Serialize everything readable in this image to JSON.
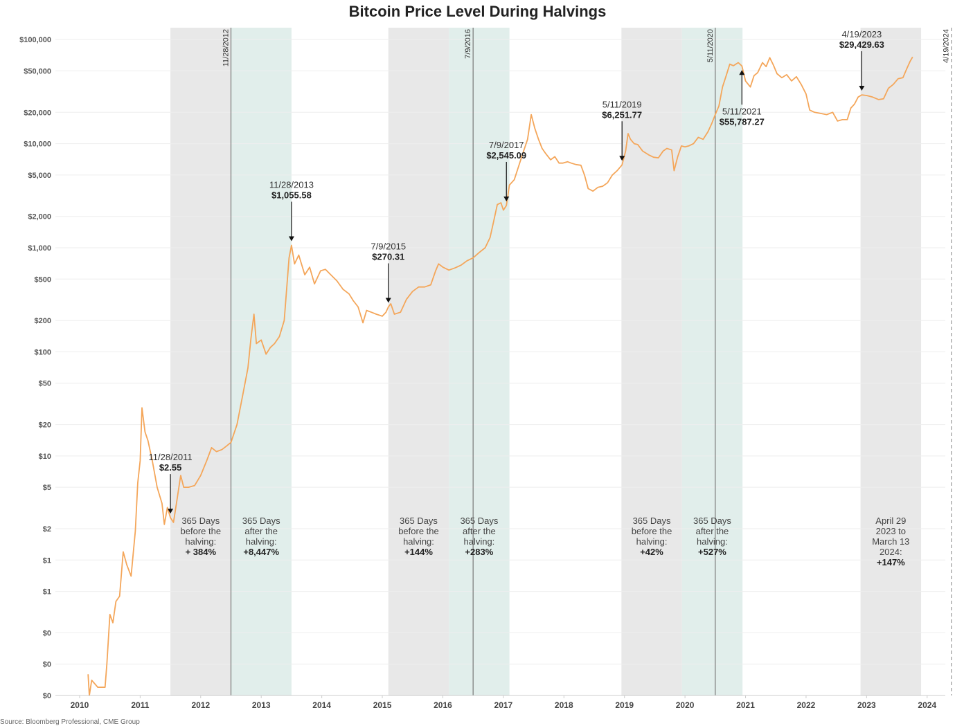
{
  "chart_data": {
    "type": "line",
    "title": "Bitcoin Price Level During Halvings",
    "source": "Source: Bloomberg Professional, CME Group",
    "scale": "log",
    "ylim": [
      0.05,
      130000
    ],
    "xlim": [
      2009.6,
      2024.3
    ],
    "y_ticks": [
      {
        "value": 100000,
        "label": "$100,000"
      },
      {
        "value": 50000,
        "label": "$50,000"
      },
      {
        "value": 20000,
        "label": "$20,000"
      },
      {
        "value": 10000,
        "label": "$10,000"
      },
      {
        "value": 5000,
        "label": "$5,000"
      },
      {
        "value": 2000,
        "label": "$2,000"
      },
      {
        "value": 1000,
        "label": "$1,000"
      },
      {
        "value": 500,
        "label": "$500"
      },
      {
        "value": 200,
        "label": "$200"
      },
      {
        "value": 100,
        "label": "$100"
      },
      {
        "value": 50,
        "label": "$50"
      },
      {
        "value": 20,
        "label": "$20"
      },
      {
        "value": 10,
        "label": "$10"
      },
      {
        "value": 5,
        "label": "$5"
      },
      {
        "value": 2,
        "label": "$2"
      },
      {
        "value": 1,
        "label": "$1"
      },
      {
        "value": 0.5,
        "label": "$1"
      },
      {
        "value": 0.2,
        "label": "$0"
      },
      {
        "value": 0.1,
        "label": "$0"
      },
      {
        "value": 0.05,
        "label": "$0"
      }
    ],
    "x_ticks": [
      "2010",
      "2011",
      "2012",
      "2013",
      "2014",
      "2015",
      "2016",
      "2017",
      "2018",
      "2019",
      "2020",
      "2021",
      "2022",
      "2023",
      "2024"
    ],
    "series": [
      {
        "name": "Bitcoin",
        "color": "#f4a65a",
        "points": [
          [
            2010.14,
            0.08
          ],
          [
            2010.16,
            0.05
          ],
          [
            2010.2,
            0.07
          ],
          [
            2010.3,
            0.06
          ],
          [
            2010.42,
            0.06
          ],
          [
            2010.45,
            0.1
          ],
          [
            2010.5,
            0.3
          ],
          [
            2010.55,
            0.25
          ],
          [
            2010.6,
            0.4
          ],
          [
            2010.66,
            0.45
          ],
          [
            2010.72,
            1.2
          ],
          [
            2010.78,
            0.9
          ],
          [
            2010.85,
            0.7
          ],
          [
            2010.92,
            1.9
          ],
          [
            2010.96,
            5.5
          ],
          [
            2011.0,
            9
          ],
          [
            2011.03,
            29
          ],
          [
            2011.08,
            17
          ],
          [
            2011.13,
            14
          ],
          [
            2011.2,
            9
          ],
          [
            2011.28,
            5
          ],
          [
            2011.36,
            3.5
          ],
          [
            2011.4,
            2.2
          ],
          [
            2011.45,
            3.2
          ],
          [
            2011.5,
            2.55
          ],
          [
            2011.55,
            2.3
          ],
          [
            2011.6,
            3.5
          ],
          [
            2011.67,
            6.5
          ],
          [
            2011.72,
            5
          ],
          [
            2011.8,
            5
          ],
          [
            2011.9,
            5.2
          ],
          [
            2012.0,
            6.5
          ],
          [
            2012.1,
            9
          ],
          [
            2012.18,
            12
          ],
          [
            2012.26,
            11
          ],
          [
            2012.35,
            11.5
          ],
          [
            2012.43,
            12.5
          ],
          [
            2012.5,
            13.5
          ],
          [
            2012.6,
            20
          ],
          [
            2012.7,
            40
          ],
          [
            2012.78,
            70
          ],
          [
            2012.83,
            135
          ],
          [
            2012.88,
            230
          ],
          [
            2012.92,
            120
          ],
          [
            2013.0,
            130
          ],
          [
            2013.08,
            95
          ],
          [
            2013.15,
            110
          ],
          [
            2013.22,
            120
          ],
          [
            2013.3,
            140
          ],
          [
            2013.38,
            200
          ],
          [
            2013.42,
            400
          ],
          [
            2013.46,
            800
          ],
          [
            2013.5,
            1055
          ],
          [
            2013.55,
            700
          ],
          [
            2013.62,
            850
          ],
          [
            2013.72,
            550
          ],
          [
            2013.8,
            650
          ],
          [
            2013.88,
            450
          ],
          [
            2013.98,
            600
          ],
          [
            2014.06,
            620
          ],
          [
            2014.15,
            550
          ],
          [
            2014.25,
            480
          ],
          [
            2014.35,
            400
          ],
          [
            2014.45,
            360
          ],
          [
            2014.52,
            310
          ],
          [
            2014.6,
            270
          ],
          [
            2014.68,
            190
          ],
          [
            2014.74,
            250
          ],
          [
            2014.82,
            240
          ],
          [
            2014.9,
            230
          ],
          [
            2015.0,
            220
          ],
          [
            2015.06,
            240
          ],
          [
            2015.1,
            270
          ],
          [
            2015.14,
            290
          ],
          [
            2015.2,
            230
          ],
          [
            2015.3,
            240
          ],
          [
            2015.4,
            320
          ],
          [
            2015.5,
            380
          ],
          [
            2015.6,
            420
          ],
          [
            2015.7,
            420
          ],
          [
            2015.8,
            440
          ],
          [
            2015.88,
            600
          ],
          [
            2015.93,
            700
          ],
          [
            2016.0,
            650
          ],
          [
            2016.1,
            610
          ],
          [
            2016.2,
            640
          ],
          [
            2016.3,
            680
          ],
          [
            2016.4,
            750
          ],
          [
            2016.5,
            800
          ],
          [
            2016.6,
            900
          ],
          [
            2016.7,
            1000
          ],
          [
            2016.78,
            1250
          ],
          [
            2016.84,
            1800
          ],
          [
            2016.9,
            2600
          ],
          [
            2016.96,
            2700
          ],
          [
            2017.0,
            2300
          ],
          [
            2017.05,
            2545
          ],
          [
            2017.1,
            4000
          ],
          [
            2017.18,
            4500
          ],
          [
            2017.25,
            6000
          ],
          [
            2017.32,
            8000
          ],
          [
            2017.4,
            11000
          ],
          [
            2017.46,
            19000
          ],
          [
            2017.52,
            14000
          ],
          [
            2017.58,
            11000
          ],
          [
            2017.64,
            9000
          ],
          [
            2017.7,
            8000
          ],
          [
            2017.78,
            7000
          ],
          [
            2017.85,
            7500
          ],
          [
            2017.92,
            6500
          ],
          [
            2017.98,
            6500
          ],
          [
            2018.06,
            6700
          ],
          [
            2018.12,
            6500
          ],
          [
            2018.2,
            6300
          ],
          [
            2018.28,
            6200
          ],
          [
            2018.34,
            5000
          ],
          [
            2018.4,
            3700
          ],
          [
            2018.48,
            3500
          ],
          [
            2018.56,
            3800
          ],
          [
            2018.64,
            3900
          ],
          [
            2018.72,
            4200
          ],
          [
            2018.8,
            5000
          ],
          [
            2018.88,
            5500
          ],
          [
            2018.96,
            6251
          ],
          [
            2019.02,
            8500
          ],
          [
            2019.06,
            12500
          ],
          [
            2019.1,
            11000
          ],
          [
            2019.16,
            10000
          ],
          [
            2019.22,
            9800
          ],
          [
            2019.3,
            8500
          ],
          [
            2019.4,
            7800
          ],
          [
            2019.48,
            7400
          ],
          [
            2019.56,
            7300
          ],
          [
            2019.64,
            8500
          ],
          [
            2019.7,
            9000
          ],
          [
            2019.78,
            8700
          ],
          [
            2019.82,
            5500
          ],
          [
            2019.88,
            7500
          ],
          [
            2019.94,
            9500
          ],
          [
            2020.0,
            9300
          ],
          [
            2020.06,
            9500
          ],
          [
            2020.14,
            10000
          ],
          [
            2020.22,
            11500
          ],
          [
            2020.3,
            11000
          ],
          [
            2020.38,
            13000
          ],
          [
            2020.44,
            15500
          ],
          [
            2020.5,
            19000
          ],
          [
            2020.56,
            23000
          ],
          [
            2020.62,
            35000
          ],
          [
            2020.68,
            45000
          ],
          [
            2020.74,
            58000
          ],
          [
            2020.8,
            56000
          ],
          [
            2020.88,
            60000
          ],
          [
            2020.94,
            55787
          ],
          [
            2021.0,
            40000
          ],
          [
            2021.08,
            35000
          ],
          [
            2021.14,
            45000
          ],
          [
            2021.2,
            48000
          ],
          [
            2021.28,
            60000
          ],
          [
            2021.34,
            55000
          ],
          [
            2021.4,
            67000
          ],
          [
            2021.46,
            57000
          ],
          [
            2021.52,
            47000
          ],
          [
            2021.6,
            43000
          ],
          [
            2021.68,
            46000
          ],
          [
            2021.76,
            40000
          ],
          [
            2021.84,
            44000
          ],
          [
            2021.92,
            37000
          ],
          [
            2022.0,
            30000
          ],
          [
            2022.06,
            21000
          ],
          [
            2022.14,
            20000
          ],
          [
            2022.24,
            19500
          ],
          [
            2022.34,
            19000
          ],
          [
            2022.44,
            20000
          ],
          [
            2022.52,
            16500
          ],
          [
            2022.6,
            17000
          ],
          [
            2022.68,
            17000
          ],
          [
            2022.74,
            22000
          ],
          [
            2022.8,
            24000
          ],
          [
            2022.86,
            28000
          ],
          [
            2022.92,
            29429
          ],
          [
            2023.0,
            29000
          ],
          [
            2023.1,
            28000
          ],
          [
            2023.2,
            26500
          ],
          [
            2023.28,
            27000
          ],
          [
            2023.36,
            34000
          ],
          [
            2023.44,
            37000
          ],
          [
            2023.52,
            42000
          ],
          [
            2023.6,
            43000
          ],
          [
            2023.66,
            52000
          ],
          [
            2023.72,
            62000
          ],
          [
            2023.76,
            68000
          ]
        ]
      }
    ],
    "halvings": [
      {
        "x": 2012.5,
        "label": "11/28/2012"
      },
      {
        "x": 2016.5,
        "label": "7/9/2016"
      },
      {
        "x": 2020.5,
        "label": "5/11/2020"
      },
      {
        "x": 2024.4,
        "label": "4/19/2024",
        "dashed": true
      }
    ],
    "bands": [
      {
        "x0": 2011.5,
        "x1": 2012.5,
        "color": "#e8e8e8",
        "lines": [
          "365 Days",
          "before the",
          "halving:"
        ],
        "bold": "+ 384%"
      },
      {
        "x0": 2012.5,
        "x1": 2013.5,
        "color": "#e1eeeb",
        "lines": [
          "365 Days",
          "after the",
          "halving:"
        ],
        "bold": "+8,447%"
      },
      {
        "x0": 2015.1,
        "x1": 2016.1,
        "color": "#e8e8e8",
        "lines": [
          "365 Days",
          "before the",
          "halving:"
        ],
        "bold": "+144%"
      },
      {
        "x0": 2016.1,
        "x1": 2017.1,
        "color": "#e1eeeb",
        "lines": [
          "365 Days",
          "after the",
          "halving:"
        ],
        "bold": "+283%"
      },
      {
        "x0": 2018.95,
        "x1": 2019.95,
        "color": "#e8e8e8",
        "lines": [
          "365 Days",
          "before the",
          "halving:"
        ],
        "bold": "+42%"
      },
      {
        "x0": 2019.95,
        "x1": 2020.95,
        "color": "#e1eeeb",
        "lines": [
          "365 Days",
          "after the",
          "halving:"
        ],
        "bold": "+527%"
      },
      {
        "x0": 2022.9,
        "x1": 2023.9,
        "color": "#e8e8e8",
        "lines": [
          "April 29",
          "2023 to",
          "March 13",
          "2024:"
        ],
        "bold": "+147%"
      }
    ],
    "annotations": [
      {
        "date": "11/28/2011",
        "value": "$2.55",
        "x": 2011.5,
        "y": 2.55,
        "dir": "down"
      },
      {
        "date": "11/28/2013",
        "value": "$1,055.58",
        "x": 2013.5,
        "y": 1055,
        "dir": "down"
      },
      {
        "date": "7/9/2015",
        "value": "$270.31",
        "x": 2015.1,
        "y": 270,
        "dir": "down"
      },
      {
        "date": "7/9/2017",
        "value": "$2,545.09",
        "x": 2017.05,
        "y": 2545,
        "dir": "down"
      },
      {
        "date": "5/11/2019",
        "value": "$6,251.77",
        "x": 2018.96,
        "y": 6251,
        "dir": "down"
      },
      {
        "date": "5/11/2021",
        "value": "$55,787.27",
        "x": 2020.94,
        "y": 55787,
        "dir": "up"
      },
      {
        "date": "4/19/2023",
        "value": "$29,429.63",
        "x": 2022.92,
        "y": 29429,
        "dir": "down"
      }
    ],
    "grid": true
  }
}
